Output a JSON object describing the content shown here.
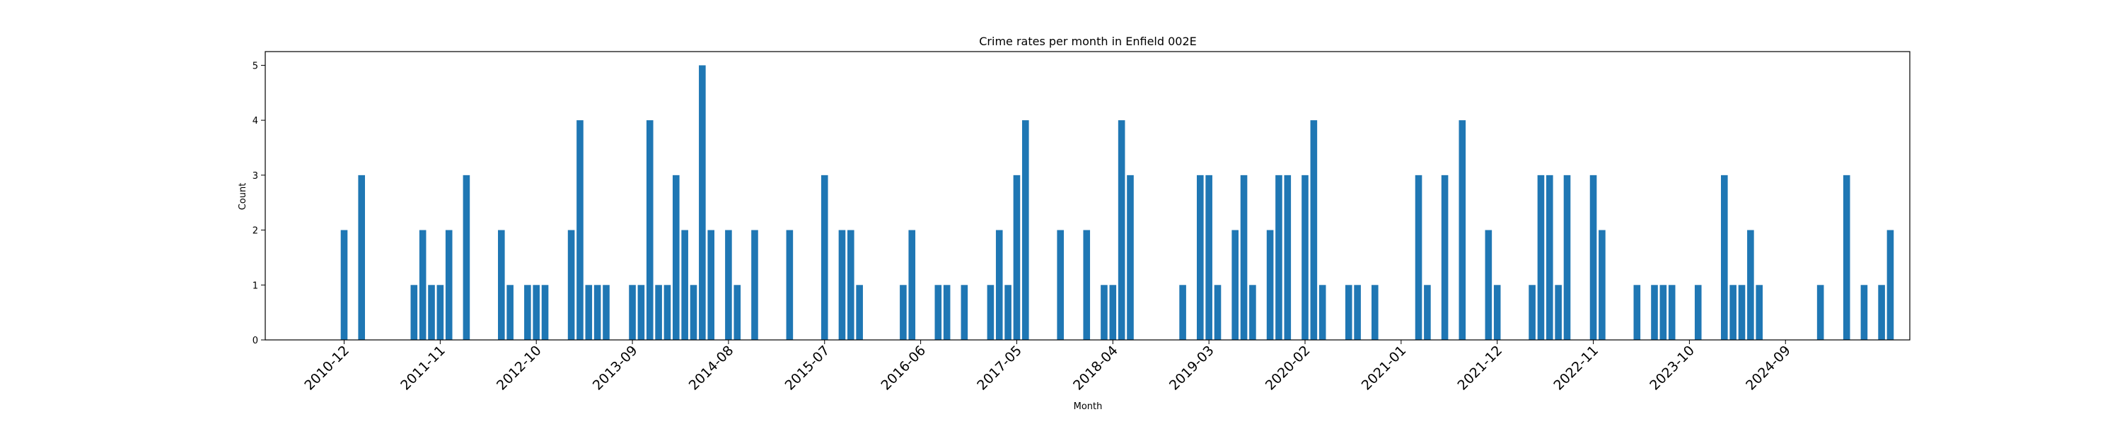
{
  "chart_data": {
    "type": "bar",
    "title": "Crime rates per month in Enfield 002E",
    "xlabel": "Month",
    "ylabel": "Count",
    "ylim": [
      0,
      5.25
    ],
    "yticks": [
      0,
      1,
      2,
      3,
      4,
      5
    ],
    "xticks": [
      "2010-12",
      "2011-11",
      "2012-10",
      "2013-09",
      "2014-08",
      "2015-07",
      "2016-06",
      "2017-05",
      "2018-04",
      "2019-03",
      "2020-02",
      "2021-01",
      "2021-12",
      "2022-11",
      "2023-10",
      "2024-09"
    ],
    "color": "#1f77b4",
    "grid": false,
    "legend": "none",
    "series": [
      {
        "values": [
          [
            "2010-12",
            2
          ],
          [
            "2011-02",
            3
          ],
          [
            "2011-08",
            1
          ],
          [
            "2011-09",
            2
          ],
          [
            "2011-10",
            1
          ],
          [
            "2011-11",
            1
          ],
          [
            "2011-12",
            2
          ],
          [
            "2012-02",
            3
          ],
          [
            "2012-06",
            2
          ],
          [
            "2012-07",
            1
          ],
          [
            "2012-09",
            1
          ],
          [
            "2012-10",
            1
          ],
          [
            "2012-11",
            1
          ],
          [
            "2013-02",
            2
          ],
          [
            "2013-03",
            4
          ],
          [
            "2013-04",
            1
          ],
          [
            "2013-05",
            1
          ],
          [
            "2013-06",
            1
          ],
          [
            "2013-09",
            1
          ],
          [
            "2013-10",
            1
          ],
          [
            "2013-11",
            4
          ],
          [
            "2013-12",
            1
          ],
          [
            "2014-01",
            1
          ],
          [
            "2014-02",
            3
          ],
          [
            "2014-03",
            2
          ],
          [
            "2014-04",
            1
          ],
          [
            "2014-05",
            5
          ],
          [
            "2014-06",
            2
          ],
          [
            "2014-08",
            2
          ],
          [
            "2014-09",
            1
          ],
          [
            "2014-11",
            2
          ],
          [
            "2015-03",
            2
          ],
          [
            "2015-07",
            3
          ],
          [
            "2015-09",
            2
          ],
          [
            "2015-10",
            2
          ],
          [
            "2015-11",
            1
          ],
          [
            "2016-04",
            1
          ],
          [
            "2016-05",
            2
          ],
          [
            "2016-08",
            1
          ],
          [
            "2016-09",
            1
          ],
          [
            "2016-11",
            1
          ],
          [
            "2017-02",
            1
          ],
          [
            "2017-03",
            2
          ],
          [
            "2017-04",
            1
          ],
          [
            "2017-05",
            3
          ],
          [
            "2017-06",
            4
          ],
          [
            "2017-10",
            2
          ],
          [
            "2018-01",
            2
          ],
          [
            "2018-03",
            1
          ],
          [
            "2018-04",
            1
          ],
          [
            "2018-05",
            4
          ],
          [
            "2018-06",
            3
          ],
          [
            "2018-12",
            1
          ],
          [
            "2019-02",
            3
          ],
          [
            "2019-03",
            3
          ],
          [
            "2019-04",
            1
          ],
          [
            "2019-06",
            2
          ],
          [
            "2019-07",
            3
          ],
          [
            "2019-08",
            1
          ],
          [
            "2019-10",
            2
          ],
          [
            "2019-11",
            3
          ],
          [
            "2019-12",
            3
          ],
          [
            "2020-02",
            3
          ],
          [
            "2020-03",
            4
          ],
          [
            "2020-04",
            1
          ],
          [
            "2020-07",
            1
          ],
          [
            "2020-08",
            1
          ],
          [
            "2020-10",
            1
          ],
          [
            "2021-03",
            3
          ],
          [
            "2021-04",
            1
          ],
          [
            "2021-06",
            3
          ],
          [
            "2021-08",
            4
          ],
          [
            "2021-11",
            2
          ],
          [
            "2021-12",
            1
          ],
          [
            "2022-04",
            1
          ],
          [
            "2022-05",
            3
          ],
          [
            "2022-06",
            3
          ],
          [
            "2022-07",
            1
          ],
          [
            "2022-08",
            3
          ],
          [
            "2022-11",
            3
          ],
          [
            "2022-12",
            2
          ],
          [
            "2023-04",
            1
          ],
          [
            "2023-06",
            1
          ],
          [
            "2023-07",
            1
          ],
          [
            "2023-08",
            1
          ],
          [
            "2023-11",
            1
          ],
          [
            "2024-02",
            3
          ],
          [
            "2024-03",
            1
          ],
          [
            "2024-04",
            1
          ],
          [
            "2024-05",
            2
          ],
          [
            "2024-06",
            1
          ],
          [
            "2025-01",
            1
          ],
          [
            "2025-04",
            3
          ],
          [
            "2025-06",
            1
          ],
          [
            "2025-08",
            1
          ],
          [
            "2025-09",
            2
          ]
        ]
      }
    ]
  }
}
